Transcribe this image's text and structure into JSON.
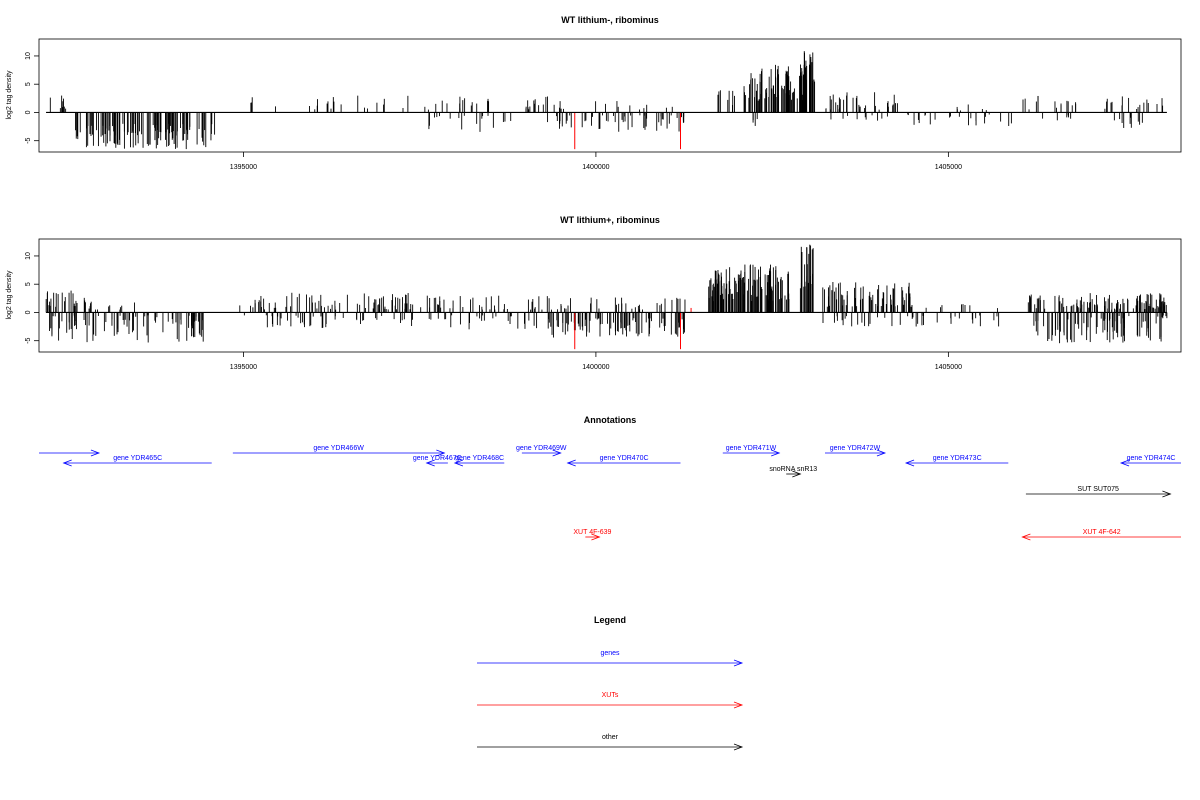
{
  "chart_data": [
    {
      "type": "bar",
      "title": "WT lithium-, ribominus",
      "xlabel": "",
      "ylabel": "log2 tag density",
      "xlim": [
        1392100,
        1408300
      ],
      "ylim": [
        -7,
        13
      ],
      "yticks": [
        -5,
        0,
        5,
        10
      ],
      "xticks": [
        1395000,
        1400000,
        1405000
      ],
      "xtick_labels": [
        "1395000",
        "1400000",
        "1405000"
      ],
      "segments": [
        {
          "x0": 1392200,
          "x1": 1392550,
          "ymin": 0.3,
          "ymax": 3.0,
          "sign": 1,
          "density": 8
        },
        {
          "x0": 1392600,
          "x1": 1394600,
          "ymin": 2.0,
          "ymax": 6.5,
          "sign": -1,
          "density": 120
        },
        {
          "x0": 1395000,
          "x1": 1395150,
          "ymin": 1.5,
          "ymax": 3.0,
          "sign": 1,
          "density": 3
        },
        {
          "x0": 1395450,
          "x1": 1395480,
          "ymin": 1.0,
          "ymax": 2.5,
          "sign": 1,
          "density": 1
        },
        {
          "x0": 1395900,
          "x1": 1396500,
          "ymin": 0.5,
          "ymax": 3.0,
          "sign": 1,
          "density": 10
        },
        {
          "x0": 1396600,
          "x1": 1397100,
          "ymin": 0.5,
          "ymax": 3.0,
          "sign": 1,
          "density": 6
        },
        {
          "x0": 1397200,
          "x1": 1398500,
          "ymin": 0.5,
          "ymax": 3.0,
          "sign": 1,
          "density": 18
        },
        {
          "x0": 1397600,
          "x1": 1398800,
          "ymin": 0.5,
          "ymax": 3.5,
          "sign": -1,
          "density": 18
        },
        {
          "x0": 1399000,
          "x1": 1399600,
          "ymin": 0.5,
          "ymax": 3.0,
          "sign": 1,
          "density": 18
        },
        {
          "x0": 1399200,
          "x1": 1400000,
          "ymin": 0.5,
          "ymax": 3.0,
          "sign": -1,
          "density": 14
        },
        {
          "x0": 1399850,
          "x1": 1401300,
          "ymin": 0.5,
          "ymax": 3.5,
          "sign": -1,
          "density": 40
        },
        {
          "x0": 1399900,
          "x1": 1401200,
          "ymin": 0.5,
          "ymax": 2.5,
          "sign": 1,
          "density": 10
        },
        {
          "x0": 1401700,
          "x1": 1402000,
          "ymin": 1.0,
          "ymax": 4.5,
          "sign": 1,
          "density": 8
        },
        {
          "x0": 1402100,
          "x1": 1403000,
          "ymin": 2.0,
          "ymax": 8.5,
          "sign": 1,
          "density": 90
        },
        {
          "x0": 1402200,
          "x1": 1402300,
          "ymin": 1.0,
          "ymax": 2.5,
          "sign": -1,
          "density": 4
        },
        {
          "x0": 1402950,
          "x1": 1403120,
          "ymin": 5.0,
          "ymax": 11.5,
          "sign": 1,
          "density": 20
        },
        {
          "x0": 1403250,
          "x1": 1404300,
          "ymin": 0.5,
          "ymax": 4.0,
          "sign": 1,
          "density": 35
        },
        {
          "x0": 1403300,
          "x1": 1404200,
          "ymin": 0.5,
          "ymax": 1.5,
          "sign": -1,
          "density": 10
        },
        {
          "x0": 1404400,
          "x1": 1405900,
          "ymin": 0.3,
          "ymax": 2.5,
          "sign": -1,
          "density": 22
        },
        {
          "x0": 1404500,
          "x1": 1405600,
          "ymin": 0.3,
          "ymax": 1.5,
          "sign": 1,
          "density": 6
        },
        {
          "x0": 1406000,
          "x1": 1407300,
          "ymin": 0.5,
          "ymax": 3.0,
          "sign": 1,
          "density": 18
        },
        {
          "x0": 1406300,
          "x1": 1406900,
          "ymin": 0.5,
          "ymax": 1.5,
          "sign": -1,
          "density": 6
        },
        {
          "x0": 1407300,
          "x1": 1408100,
          "ymin": 0.5,
          "ymax": 3.0,
          "sign": 1,
          "density": 14
        },
        {
          "x0": 1407300,
          "x1": 1407800,
          "ymin": 0.5,
          "ymax": 3.5,
          "sign": -1,
          "density": 10
        }
      ],
      "red_bars": [
        {
          "x": 1399700,
          "value": -6.5
        },
        {
          "x": 1401200,
          "value": -6.5
        }
      ]
    },
    {
      "type": "bar",
      "title": "WT lithium+, ribominus",
      "xlabel": "",
      "ylabel": "log2 tag density",
      "xlim": [
        1392100,
        1408300
      ],
      "ylim": [
        -7,
        13
      ],
      "yticks": [
        -5,
        0,
        5,
        10
      ],
      "xticks": [
        1395000,
        1400000,
        1405000
      ],
      "xtick_labels": [
        "1395000",
        "1400000",
        "1405000"
      ],
      "segments": [
        {
          "x0": 1392200,
          "x1": 1392800,
          "ymin": 1.0,
          "ymax": 4.0,
          "sign": 1,
          "density": 25
        },
        {
          "x0": 1392200,
          "x1": 1394500,
          "ymin": 0.5,
          "ymax": 5.5,
          "sign": -1,
          "density": 90
        },
        {
          "x0": 1392800,
          "x1": 1393500,
          "ymin": 0.5,
          "ymax": 2.0,
          "sign": 1,
          "density": 12
        },
        {
          "x0": 1394900,
          "x1": 1397800,
          "ymin": 0.5,
          "ymax": 3.5,
          "sign": 1,
          "density": 90
        },
        {
          "x0": 1395000,
          "x1": 1398000,
          "ymin": 0.5,
          "ymax": 3.0,
          "sign": -1,
          "density": 50
        },
        {
          "x0": 1397800,
          "x1": 1398800,
          "ymin": 0.5,
          "ymax": 3.0,
          "sign": 1,
          "density": 20
        },
        {
          "x0": 1398000,
          "x1": 1399200,
          "ymin": 0.5,
          "ymax": 3.0,
          "sign": -1,
          "density": 20
        },
        {
          "x0": 1399000,
          "x1": 1399700,
          "ymin": 0.5,
          "ymax": 3.0,
          "sign": 1,
          "density": 18
        },
        {
          "x0": 1399300,
          "x1": 1401300,
          "ymin": 1.0,
          "ymax": 4.5,
          "sign": -1,
          "density": 90
        },
        {
          "x0": 1399900,
          "x1": 1401300,
          "ymin": 0.5,
          "ymax": 3.0,
          "sign": 1,
          "density": 25
        },
        {
          "x0": 1401600,
          "x1": 1402750,
          "ymin": 2.0,
          "ymax": 8.5,
          "sign": 1,
          "density": 120
        },
        {
          "x0": 1402900,
          "x1": 1403100,
          "ymin": 4.0,
          "ymax": 12.0,
          "sign": 1,
          "density": 25
        },
        {
          "x0": 1403200,
          "x1": 1404500,
          "ymin": 1.0,
          "ymax": 5.5,
          "sign": 1,
          "density": 70
        },
        {
          "x0": 1403200,
          "x1": 1405800,
          "ymin": 0.5,
          "ymax": 2.5,
          "sign": -1,
          "density": 40
        },
        {
          "x0": 1404600,
          "x1": 1405800,
          "ymin": 0.5,
          "ymax": 1.5,
          "sign": 1,
          "density": 8
        },
        {
          "x0": 1406100,
          "x1": 1408100,
          "ymin": 0.5,
          "ymax": 3.5,
          "sign": 1,
          "density": 110
        },
        {
          "x0": 1406200,
          "x1": 1408100,
          "ymin": 0.5,
          "ymax": 5.5,
          "sign": -1,
          "density": 90
        }
      ],
      "red_bars": [
        {
          "x": 1399700,
          "value": -6.5
        },
        {
          "x": 1401200,
          "value": -6.5
        },
        {
          "x": 1401350,
          "value": 0.8
        }
      ]
    }
  ],
  "annotations": {
    "title": "Annotations",
    "features": [
      {
        "label": "",
        "start": 1392100,
        "end": 1392950,
        "strand": "+",
        "row": 1,
        "type": "gene"
      },
      {
        "label": "gene YDR465C",
        "start": 1392450,
        "end": 1394550,
        "strand": "-",
        "row": 2,
        "type": "gene"
      },
      {
        "label": "gene YDR466W",
        "start": 1394850,
        "end": 1397850,
        "strand": "+",
        "row": 1,
        "type": "gene"
      },
      {
        "label": "gene YDR467C",
        "start": 1397600,
        "end": 1397900,
        "strand": "-",
        "row": 2,
        "type": "gene"
      },
      {
        "label": "gene YDR468C",
        "start": 1398000,
        "end": 1398700,
        "strand": "-",
        "row": 2,
        "type": "gene"
      },
      {
        "label": "gene YDR469W",
        "start": 1398950,
        "end": 1399500,
        "strand": "+",
        "row": 1,
        "type": "gene"
      },
      {
        "label": "gene YDR470C",
        "start": 1399600,
        "end": 1401200,
        "strand": "-",
        "row": 2,
        "type": "gene"
      },
      {
        "label": "gene YDR471W",
        "start": 1401800,
        "end": 1402600,
        "strand": "+",
        "row": 1,
        "type": "gene"
      },
      {
        "label": "gene YDR472W",
        "start": 1403250,
        "end": 1404100,
        "strand": "+",
        "row": 1,
        "type": "gene"
      },
      {
        "label": "gene YDR473C",
        "start": 1404400,
        "end": 1405850,
        "strand": "-",
        "row": 2,
        "type": "gene"
      },
      {
        "label": "gene YDR474C",
        "start": 1407450,
        "end": 1408300,
        "strand": "-",
        "row": 2,
        "type": "gene"
      },
      {
        "label": "snoRNA snR13",
        "start": 1402700,
        "end": 1402900,
        "strand": "+",
        "row": 3,
        "type": "other"
      },
      {
        "label": "SUT SUT075",
        "start": 1406100,
        "end": 1408150,
        "strand": "+",
        "row": 4,
        "type": "other"
      },
      {
        "label": "XUT 4F-639",
        "start": 1399850,
        "end": 1400050,
        "strand": "+",
        "row": 5,
        "type": "xut"
      },
      {
        "label": "XUT 4F-642",
        "start": 1406050,
        "end": 1408300,
        "strand": "-",
        "row": 5,
        "type": "xut"
      }
    ]
  },
  "legend": {
    "title": "Legend",
    "items": [
      {
        "label": "genes",
        "color": "#0000ff"
      },
      {
        "label": "XUTs",
        "color": "#ff0000"
      },
      {
        "label": "other",
        "color": "#000000"
      }
    ]
  },
  "colors": {
    "gene": "#0000ff",
    "xut": "#ff0000",
    "other": "#000000",
    "bar": "#000000",
    "highlight": "#ff0000"
  }
}
